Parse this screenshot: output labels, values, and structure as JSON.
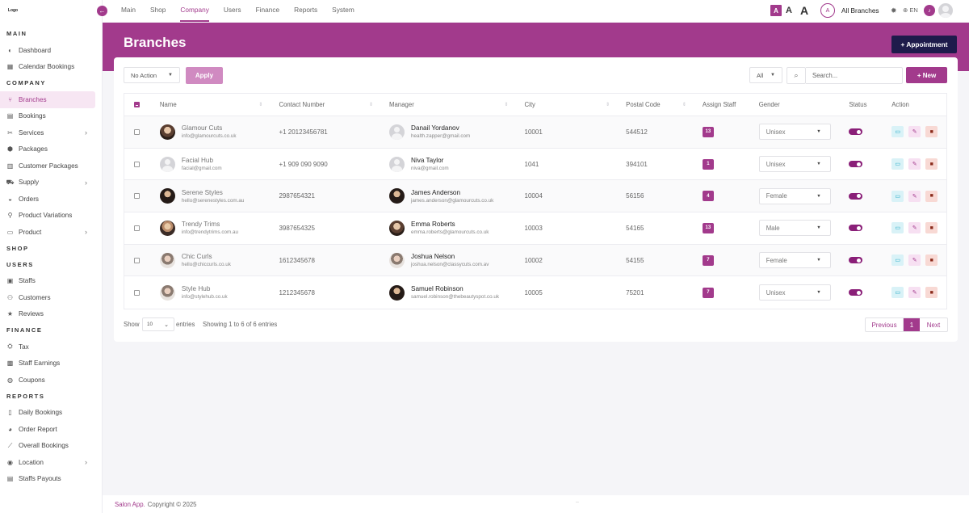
{
  "logo_text": "Logo",
  "sidebar": {
    "sections": [
      {
        "title": "MAIN",
        "items": [
          {
            "label": "Dashboard",
            "icon": "dashboard-icon",
            "glyph": "◐"
          },
          {
            "label": "Calendar Bookings",
            "icon": "calendar-icon",
            "glyph": "▦"
          }
        ]
      },
      {
        "title": "COMPANY",
        "items": [
          {
            "label": "Branches",
            "icon": "branch-icon",
            "glyph": "⑂",
            "active": true
          },
          {
            "label": "Bookings",
            "icon": "bookings-icon",
            "glyph": "▤"
          },
          {
            "label": "Services",
            "icon": "services-icon",
            "glyph": "✂",
            "chevron": true
          },
          {
            "label": "Packages",
            "icon": "packages-icon",
            "glyph": "⬢"
          },
          {
            "label": "Customer Packages",
            "icon": "customer-packages-icon",
            "glyph": "▥"
          },
          {
            "label": "Supply",
            "icon": "supply-icon",
            "glyph": "⛟",
            "chevron": true
          },
          {
            "label": "Orders",
            "icon": "orders-icon",
            "glyph": "◒"
          },
          {
            "label": "Product Variations",
            "icon": "product-variations-icon",
            "glyph": "⚲"
          },
          {
            "label": "Product",
            "icon": "product-icon",
            "glyph": "▭",
            "chevron": true
          }
        ]
      },
      {
        "title": "SHOP",
        "items": []
      },
      {
        "title": "USERS",
        "items": [
          {
            "label": "Staffs",
            "icon": "staffs-icon",
            "glyph": "▣"
          },
          {
            "label": "Customers",
            "icon": "customers-icon",
            "glyph": "⚇"
          },
          {
            "label": "Reviews",
            "icon": "reviews-icon",
            "glyph": "★"
          }
        ]
      },
      {
        "title": "FINANCE",
        "items": [
          {
            "label": "Tax",
            "icon": "tax-icon",
            "glyph": "⛭"
          },
          {
            "label": "Staff Earnings",
            "icon": "staff-earnings-icon",
            "glyph": "▩"
          },
          {
            "label": "Coupons",
            "icon": "coupons-icon",
            "glyph": "◍"
          }
        ]
      },
      {
        "title": "REPORTS",
        "items": [
          {
            "label": "Daily Bookings",
            "icon": "daily-bookings-icon",
            "glyph": "▯"
          },
          {
            "label": "Order Report",
            "icon": "order-report-icon",
            "glyph": "◕"
          },
          {
            "label": "Overall Bookings",
            "icon": "overall-bookings-icon",
            "glyph": "⟋"
          },
          {
            "label": "Location",
            "icon": "location-icon",
            "glyph": "◉",
            "chevron": true
          },
          {
            "label": "Staffs Payouts",
            "icon": "staffs-payouts-icon",
            "glyph": "▤"
          }
        ]
      }
    ]
  },
  "topnav": {
    "tabs": [
      {
        "label": "Main"
      },
      {
        "label": "Shop"
      },
      {
        "label": "Company",
        "active": true
      },
      {
        "label": "Users"
      },
      {
        "label": "Finance"
      },
      {
        "label": "Reports"
      },
      {
        "label": "System"
      }
    ],
    "font_small": "A",
    "font_medium": "A",
    "font_large": "A",
    "branch_initial": "A",
    "branch_label": "All Branches",
    "lang": "EN"
  },
  "header": {
    "title": "Branches",
    "appointment_button": "+ Appointment"
  },
  "toolbar": {
    "bulk_action": "No Action",
    "apply_label": "Apply",
    "filter_value": "All",
    "search_placeholder": "Search...",
    "new_label": "+ New"
  },
  "table": {
    "columns": [
      "Name",
      "Contact Number",
      "Manager",
      "City",
      "Postal Code",
      "Assign Staff",
      "Gender",
      "Status",
      "Action"
    ],
    "rows": [
      {
        "name": "Glamour Cuts",
        "email": "info@glamourcuts.co.uk",
        "contact": "+1 20123456781",
        "manager": "Danail Yordanov",
        "manager_email": "health.zapper@gmail.com",
        "city": "10001",
        "postal": "544512",
        "staff": "13",
        "gender": "Unisex",
        "avatar": "photo",
        "mavatar": "placeholder"
      },
      {
        "name": "Facial Hub",
        "email": "facial@gmail.com",
        "contact": "+1 909 090 9090",
        "manager": "Niva Taylor",
        "manager_email": "niva@gmail.com",
        "city": "1041",
        "postal": "394101",
        "staff": "1",
        "gender": "Unisex",
        "avatar": "placeholder",
        "mavatar": "placeholder"
      },
      {
        "name": "Serene Styles",
        "email": "hello@serenestyles.com.au",
        "contact": "2987654321",
        "manager": "James Anderson",
        "manager_email": "james.anderson@glamourcuts.co.uk",
        "city": "10004",
        "postal": "56156",
        "staff": "4",
        "gender": "Female",
        "avatar": "photo3",
        "mavatar": "photo3"
      },
      {
        "name": "Trendy Trims",
        "email": "info@trendytrims.com.au",
        "contact": "3987654325",
        "manager": "Emma Roberts",
        "manager_email": "emma.roberts@glamourcuts.co.uk",
        "city": "10003",
        "postal": "54165",
        "staff": "13",
        "gender": "Male",
        "avatar": "photo2",
        "mavatar": "photo"
      },
      {
        "name": "Chic Curls",
        "email": "hello@chiccurls.co.uk",
        "contact": "1612345678",
        "manager": "Joshua Nelson",
        "manager_email": "joshua.nelson@classycuts.com.av",
        "city": "10002",
        "postal": "54155",
        "staff": "7",
        "gender": "Female",
        "avatar": "photo4",
        "mavatar": "photo4"
      },
      {
        "name": "Style Hub",
        "email": "info@stylehub.co.uk",
        "contact": "1212345678",
        "manager": "Samuel Robinson",
        "manager_email": "samuel.robinson@thebeautyspot.co.uk",
        "city": "10005",
        "postal": "75201",
        "staff": "7",
        "gender": "Unisex",
        "avatar": "photo4",
        "mavatar": "photo3"
      }
    ]
  },
  "pagination": {
    "show_label": "Show",
    "page_size": "10",
    "entries_label": "entries",
    "info": "Showing 1 to 6 of 6 entries",
    "previous": "Previous",
    "current": "1",
    "next": "Next"
  },
  "footer": {
    "brand": "Salon App.",
    "copyright": "Copyright © 2025",
    "dots": ".."
  },
  "colors": {
    "primary": "#a23a8c",
    "dark_button": "#1e1b4b",
    "toggle_on": "#8a1f78"
  }
}
